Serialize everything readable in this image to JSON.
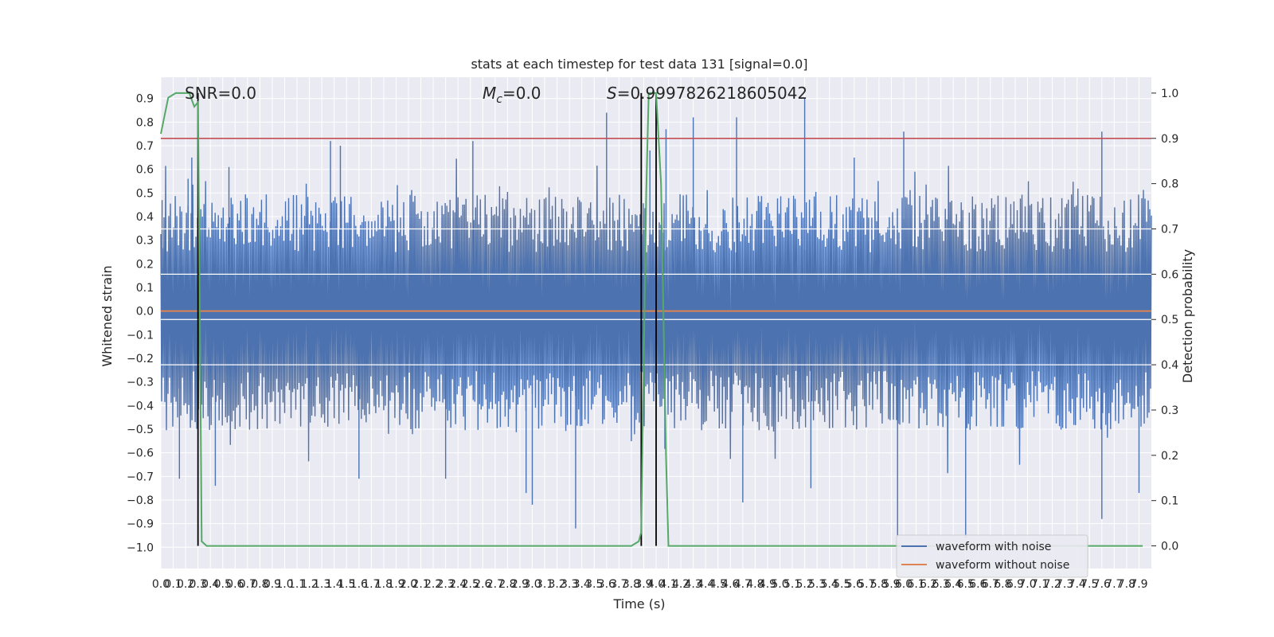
{
  "chart_data": {
    "type": "line",
    "title": "stats at each timestep for test data 131 [signal=0.0]",
    "xlabel": "Time (s)",
    "ylabel_left": "Whitened strain",
    "ylabel_right": "Detection probability",
    "xlim": [
      0.0,
      8.0
    ],
    "ylim_left": [
      -1.09,
      0.99
    ],
    "ylim_right": [
      -0.05,
      1.035
    ],
    "x_ticks": [
      "0.0",
      "0.1",
      "0.2",
      "0.3",
      "0.4",
      "0.5",
      "0.6",
      "0.7",
      "0.8",
      "0.9",
      "1.0",
      "1.1",
      "1.2",
      "1.3",
      "1.4",
      "1.5",
      "1.6",
      "1.7",
      "1.8",
      "1.9",
      "2.0",
      "2.1",
      "2.2",
      "2.3",
      "2.4",
      "2.5",
      "2.6",
      "2.7",
      "2.8",
      "2.9",
      "3.0",
      "3.1",
      "3.2",
      "3.3",
      "3.4",
      "3.5",
      "3.6",
      "3.7",
      "3.8",
      "3.9",
      "4.0",
      "4.1",
      "4.2",
      "4.3",
      "4.4",
      "4.5",
      "4.6",
      "4.7",
      "4.8",
      "4.9",
      "5.0",
      "5.1",
      "5.2",
      "5.3",
      "5.4",
      "5.5",
      "5.6",
      "5.7",
      "5.8",
      "5.9",
      "6.0",
      "6.1",
      "6.2",
      "6.3",
      "6.4",
      "6.5",
      "6.6",
      "6.7",
      "6.8",
      "6.9",
      "7.0",
      "7.1",
      "7.2",
      "7.3",
      "7.4",
      "7.5",
      "7.6",
      "7.7",
      "7.8",
      "7.9"
    ],
    "y_ticks_left": [
      "0.9",
      "0.8",
      "0.7",
      "0.6",
      "0.5",
      "0.4",
      "0.3",
      "0.2",
      "0.1",
      "0.0",
      "−0.1",
      "−0.2",
      "−0.3",
      "−0.4",
      "−0.5",
      "−0.6",
      "−0.7",
      "−0.8",
      "−0.9",
      "−1.0"
    ],
    "y_ticks_right": [
      "1.0",
      "0.9",
      "0.8",
      "0.7",
      "0.6",
      "0.5",
      "0.4",
      "0.3",
      "0.2",
      "0.1",
      "0.0"
    ],
    "annotations": {
      "snr": "SNR=0.0",
      "mc_symbol": "M",
      "mc_sub": "c",
      "mc_value": "=0.0",
      "s_symbol": "S",
      "s_value": "=0.9997826218605042"
    },
    "series": [
      {
        "name": "waveform with noise",
        "color": "#4c72b0",
        "axis": "left",
        "description_kind": "noise band",
        "x_range": [
          0.0,
          8.0
        ],
        "envelope_upper": 0.45,
        "envelope_lower": -0.45,
        "peaks_upper": [
          [
            0.01,
            0.47
          ],
          [
            0.22,
            0.56
          ],
          [
            0.25,
            0.65
          ],
          [
            0.55,
            0.61
          ],
          [
            1.37,
            0.72
          ],
          [
            1.45,
            0.7
          ],
          [
            2.52,
            0.72
          ],
          [
            3.6,
            0.84
          ],
          [
            3.95,
            0.68
          ],
          [
            4.08,
            0.77
          ],
          [
            4.3,
            0.82
          ],
          [
            4.65,
            0.82
          ],
          [
            5.2,
            0.9
          ],
          [
            5.6,
            0.65
          ],
          [
            6.0,
            0.76
          ],
          [
            7.6,
            0.76
          ],
          [
            7.95,
            0.22
          ]
        ],
        "peaks_lower": [
          [
            0.15,
            -0.71
          ],
          [
            0.44,
            -0.74
          ],
          [
            1.6,
            -0.71
          ],
          [
            2.3,
            -0.71
          ],
          [
            2.95,
            -0.77
          ],
          [
            3.0,
            -0.82
          ],
          [
            3.35,
            -0.92
          ],
          [
            4.7,
            -0.81
          ],
          [
            5.25,
            -0.75
          ],
          [
            5.95,
            -0.95
          ],
          [
            6.5,
            -0.96
          ],
          [
            7.6,
            -0.88
          ],
          [
            7.9,
            -0.77
          ]
        ]
      },
      {
        "name": "waveform without noise",
        "color": "#dd8452",
        "axis": "left",
        "x": [
          0.0,
          8.0
        ],
        "y": [
          0.0,
          0.0
        ]
      },
      {
        "name": "",
        "color": "#55a868",
        "axis": "right",
        "x": [
          0.0,
          0.06,
          0.12,
          0.18,
          0.23,
          0.27,
          0.3,
          0.33,
          0.37,
          3.8,
          3.86,
          3.88,
          3.92,
          3.94,
          3.97,
          4.0,
          4.04,
          4.08,
          4.1,
          4.12,
          4.2,
          5.0,
          7.0,
          7.93
        ],
        "y": [
          0.91,
          0.99,
          1.0,
          1.0,
          1.0,
          0.97,
          0.98,
          0.01,
          0.0,
          0.0,
          0.01,
          0.03,
          0.78,
          1.0,
          1.0,
          1.0,
          0.8,
          0.2,
          0.0,
          0.0,
          0.0,
          0.0,
          0.0,
          0.0
        ]
      }
    ],
    "threshold": {
      "axis": "right",
      "value": 0.9,
      "color": "#c44e52"
    },
    "vertical_markers": [
      0.3,
      3.88,
      4.0
    ],
    "legend": {
      "location": "lower-right",
      "entries": [
        "waveform with noise",
        "waveform without noise"
      ]
    },
    "grid": true,
    "background": "#eaeaf2"
  }
}
